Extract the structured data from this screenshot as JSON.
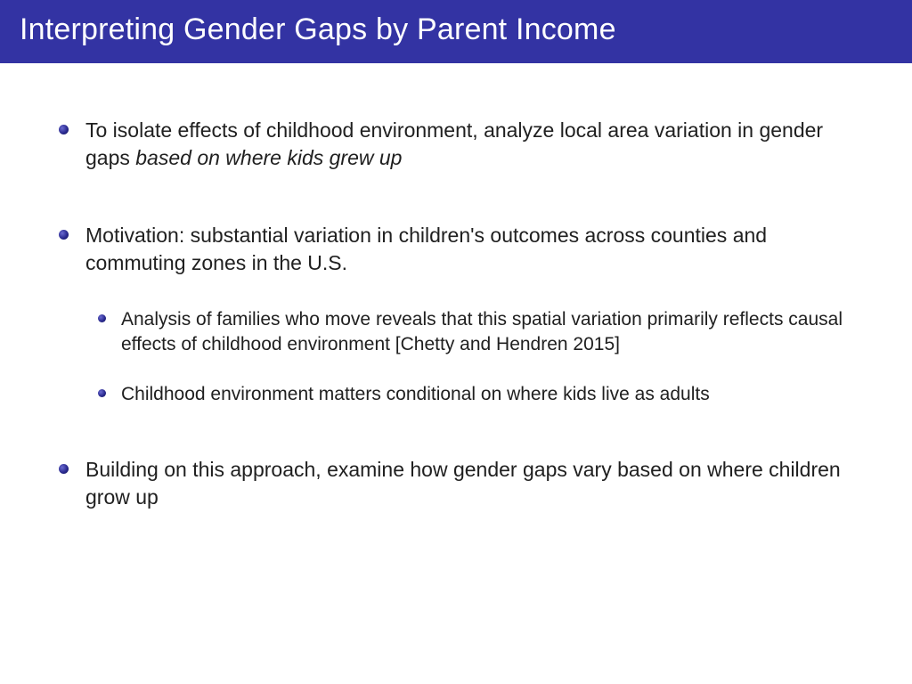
{
  "title": "Interpreting Gender Gaps by Parent Income",
  "bullets": {
    "b1_part1": "To isolate effects of childhood environment, analyze local area variation in gender gaps ",
    "b1_italic": "based on where kids grew up",
    "b2": "Motivation: substantial variation in children's outcomes across counties and commuting zones in the U.S.",
    "b2_sub1": "Analysis of families who move reveals that this spatial variation primarily reflects causal effects of childhood environment [Chetty and Hendren 2015]",
    "b2_sub2": "Childhood environment matters conditional on where kids live as adults",
    "b3": "Building on this approach, examine how gender gaps vary based on where children grow up"
  },
  "colors": {
    "title_bg": "#3333a3",
    "title_fg": "#ffffff",
    "text": "#202020",
    "bullet_dark": "#101050"
  }
}
